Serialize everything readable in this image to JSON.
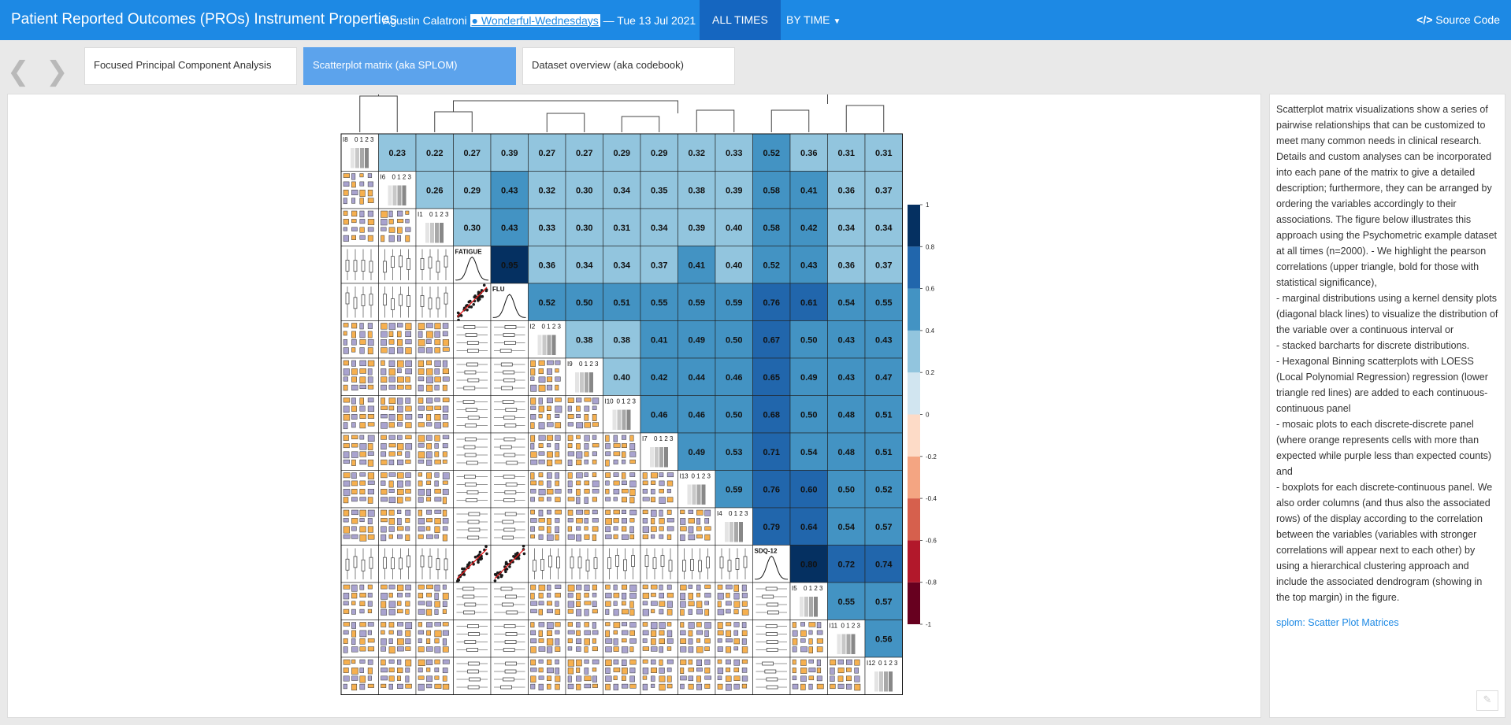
{
  "header": {
    "title": "Patient Reported Outcomes (PROs) Instrument Properties",
    "author": "Agustin Calatroni",
    "github_label": "Wonderful-Wednesdays",
    "date": "— Tue 13 Jul 2021",
    "nav_all_times": "ALL TIMES",
    "nav_by_time": "BY TIME",
    "source_code": "Source Code"
  },
  "tabs": [
    {
      "label": "Focused Principal Component Analysis"
    },
    {
      "label": "Scatterplot matrix (aka SPLOM)"
    },
    {
      "label": "Dataset overview (aka codebook)"
    }
  ],
  "sidebar": {
    "paragraph": "Scatterplot matrix visualizations show a series of pairwise relationships that can be customized to meet many common needs in clinical research. Details and custom analyses can be incorporated into each pane of the matrix to give a detailed description; furthermore, they can be arranged by ordering the variables accordingly to their associations. The figure below illustrates this approach using the Psychometric example dataset at all times (n=2000). - We highlight the pearson correlations (upper triangle, bold for those with statistical significance),",
    "bullets": [
      "- marginal distributions using a kernel density plots (diagonal black lines) to visualize the distribution of the variable over a continuous interval or",
      "- stacked barcharts for discrete distributions.",
      "- Hexagonal Binning scatterplots with LOESS (Local Polynomial Regression) regression (lower triangle red lines) are added to each continuous-continuous panel",
      "- mosaic plots to each discrete-discrete panel (where orange represents cells with more than expected while purple less than expected counts) and",
      "- boxplots for each discrete-continuous panel. We also order columns (and thus also the associated rows) of the display according to the correlation between the variables (variables with stronger correlations will appear next to each other) by using a hierarchical clustering approach and include the associated dendrogram (showing in the top margin) in the figure."
    ],
    "link": "splom: Scatter Plot Matrices"
  },
  "chart_data": {
    "type": "heatmap",
    "variables": [
      "I8",
      "I6",
      "I1",
      "FATIGUE",
      "FLU",
      "I2",
      "I9",
      "I10",
      "I7",
      "I13",
      "I4",
      "SDQ-12",
      "I5",
      "I11",
      "I12"
    ],
    "continuous": [
      "FATIGUE",
      "FLU",
      "SDQ-12"
    ],
    "discrete_levels": "0 1 2 3",
    "upper_triangle_correlations": [
      [
        0.23,
        0.22,
        0.27,
        0.39,
        0.27,
        0.27,
        0.29,
        0.29,
        0.32,
        0.33,
        0.52,
        0.36,
        0.31,
        0.31
      ],
      [
        0.26,
        0.29,
        0.43,
        0.32,
        0.3,
        0.34,
        0.35,
        0.38,
        0.39,
        0.58,
        0.41,
        0.36,
        0.37
      ],
      [
        0.3,
        0.43,
        0.33,
        0.3,
        0.31,
        0.34,
        0.39,
        0.4,
        0.58,
        0.42,
        0.34,
        0.34
      ],
      [
        0.95,
        0.36,
        0.34,
        0.34,
        0.37,
        0.41,
        0.4,
        0.52,
        0.43,
        0.36,
        0.37
      ],
      [
        0.52,
        0.5,
        0.51,
        0.55,
        0.59,
        0.59,
        0.76,
        0.61,
        0.54,
        0.55
      ],
      [
        0.38,
        0.38,
        0.41,
        0.49,
        0.5,
        0.67,
        0.5,
        0.43,
        0.43
      ],
      [
        0.4,
        0.42,
        0.44,
        0.46,
        0.65,
        0.49,
        0.43,
        0.47
      ],
      [
        0.46,
        0.46,
        0.5,
        0.68,
        0.5,
        0.48,
        0.51
      ],
      [
        0.49,
        0.53,
        0.71,
        0.54,
        0.48,
        0.51
      ],
      [
        0.59,
        0.76,
        0.6,
        0.5,
        0.52
      ],
      [
        0.79,
        0.64,
        0.54,
        0.57
      ],
      [
        0.8,
        0.72,
        0.74
      ],
      [
        0.55,
        0.57
      ],
      [
        0.56
      ]
    ],
    "colorbar_ticks": [
      "1",
      "0.8",
      "0.6",
      "0.4",
      "0.2",
      "0",
      "-0.2",
      "-0.4",
      "-0.6",
      "-0.8",
      "-1"
    ],
    "colorbar_range": [
      -1,
      1
    ],
    "colors": {
      "bins": [
        "#67001f",
        "#b2182b",
        "#d6604d",
        "#f4a582",
        "#fddbc7",
        "#d1e5f0",
        "#92c5de",
        "#4393c3",
        "#2166ac",
        "#053061"
      ],
      "mosaic_over": "#f6b04f",
      "mosaic_under": "#a9a3cf",
      "loess": "#e31a1c"
    }
  }
}
